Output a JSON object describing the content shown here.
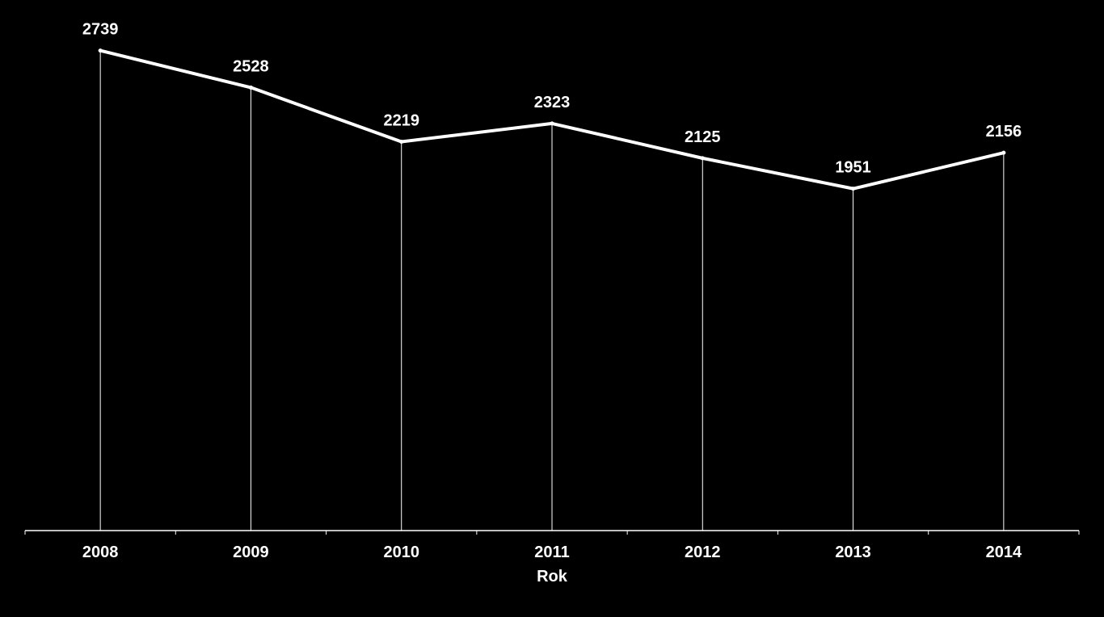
{
  "colors": {
    "background": "#000000",
    "line": "#ffffff",
    "text": "#ffffff",
    "axis": "#ffffff"
  },
  "chart_data": {
    "type": "line",
    "title": "",
    "xlabel": "Rok",
    "ylabel": "",
    "categories": [
      "2008",
      "2009",
      "2010",
      "2011",
      "2012",
      "2013",
      "2014"
    ],
    "series": [
      {
        "values": [
          2739,
          2528,
          2219,
          2323,
          2125,
          1951,
          2156
        ]
      }
    ],
    "data_labels": [
      "2739",
      "2528",
      "2219",
      "2323",
      "2125",
      "1951",
      "2156"
    ],
    "ylim": [
      0,
      3000
    ],
    "drop_lines": true,
    "grid": false,
    "legend": "none"
  }
}
